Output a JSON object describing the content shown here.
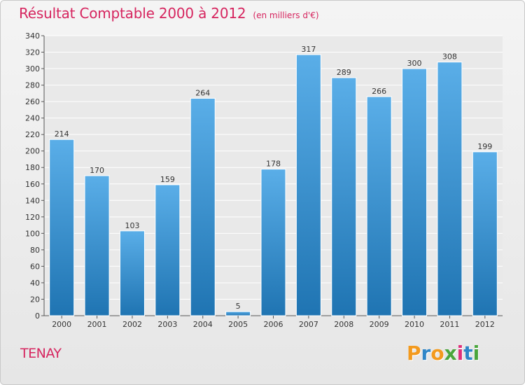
{
  "chart_data": {
    "type": "bar",
    "title": "Résultat Comptable 2000 à 2012",
    "subtitle": "(en milliers d'€)",
    "categories": [
      "2000",
      "2001",
      "2002",
      "2003",
      "2004",
      "2005",
      "2006",
      "2007",
      "2008",
      "2009",
      "2010",
      "2011",
      "2012"
    ],
    "values": [
      214,
      170,
      103,
      159,
      264,
      5,
      178,
      317,
      289,
      266,
      300,
      308,
      199
    ],
    "ylim": [
      0,
      340
    ],
    "yticks": [
      0,
      20,
      40,
      60,
      80,
      100,
      120,
      140,
      160,
      180,
      200,
      220,
      240,
      260,
      280,
      300,
      320,
      340
    ],
    "xlabel": "",
    "ylabel": "",
    "grid": true
  },
  "location": "TENAY",
  "logo": {
    "letters": [
      "P",
      "r",
      "o",
      "x",
      "i",
      "t",
      "i"
    ]
  },
  "colors": {
    "title": "#d6255f",
    "bar_top": "#5aaee8",
    "bar_bottom": "#1f74b2",
    "logo": [
      "#f39a1e",
      "#2f86c8",
      "#f39a1e",
      "#4aa63c",
      "#e0307a",
      "#2f86c8",
      "#4aa63c"
    ]
  }
}
